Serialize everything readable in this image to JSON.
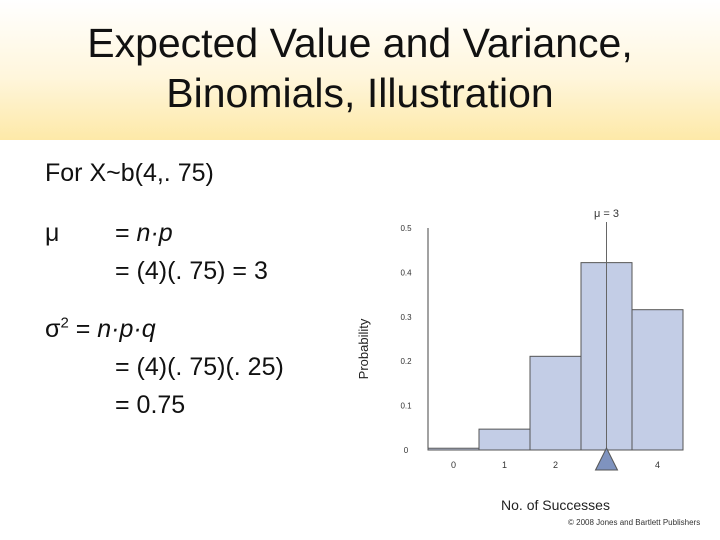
{
  "slide": {
    "title_line1": "Expected Value and Variance,",
    "title_line2": "Binomials, Illustration",
    "intro": "For X~b(4,. 75)",
    "mu_symbol": "μ",
    "mu_formula_eq": "= ",
    "mu_formula_expr": "n·p",
    "mu_result": "= (4)(. 75) = 3",
    "sigma_symbol": "σ",
    "sigma_power": "2",
    "sigma_formula_eq": " = ",
    "sigma_formula_expr": "n·p·q",
    "sigma_line2": "= (4)(. 75)(. 25)",
    "sigma_line3": "= 0.75",
    "copyright": "© 2008 Jones and Bartlett Publishers"
  },
  "chart_data": {
    "type": "bar",
    "categories": [
      "0",
      "1",
      "2",
      "3",
      "4"
    ],
    "values": [
      0.004,
      0.047,
      0.211,
      0.422,
      0.316
    ],
    "ylabel": "Probability",
    "xlabel": "No. of Successes",
    "x_tick_labels": [
      "0",
      "1",
      "2",
      "3",
      "4"
    ],
    "y_tick_labels": [
      "0",
      "0.1",
      "0.2",
      "0.3",
      "0.4",
      "0.5"
    ],
    "ylim": [
      0,
      0.5
    ],
    "mean_label": "μ = 3",
    "mean_value": 3,
    "bar_color": "#c3cde6",
    "bar_edge": "#555555",
    "marker_color": "#7f93bf",
    "grid": false
  }
}
